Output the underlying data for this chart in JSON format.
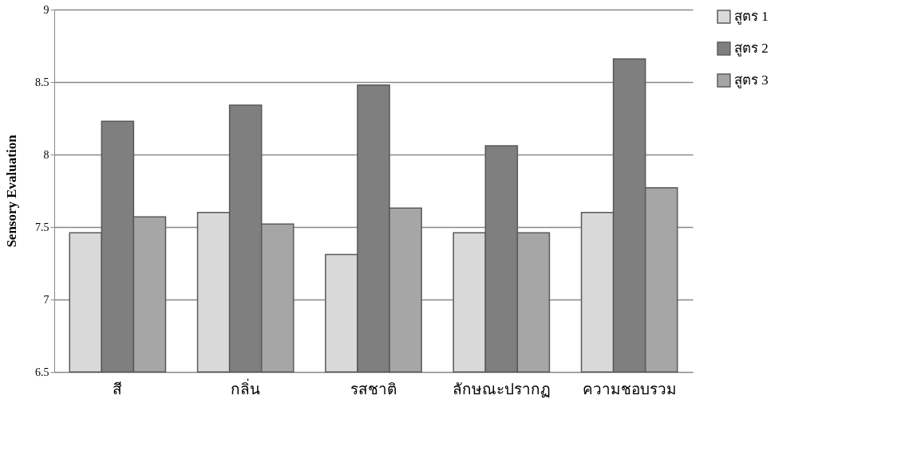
{
  "chart_data": {
    "type": "bar",
    "ylabel": "Sensory Evaluation",
    "categories": [
      "สี",
      "กลิ่น",
      "รสชาติ",
      "ลักษณะปรากฏ",
      "ความชอบรวม"
    ],
    "series": [
      {
        "name": "สูตร 1",
        "color": "#d9d9d9",
        "values": [
          7.46,
          7.6,
          7.31,
          7.46,
          7.6
        ]
      },
      {
        "name": "สูตร 2",
        "color": "#7f7f7f",
        "values": [
          8.23,
          8.34,
          8.48,
          8.06,
          8.66
        ]
      },
      {
        "name": "สูตร 3",
        "color": "#a6a6a6",
        "values": [
          7.57,
          7.52,
          7.63,
          7.46,
          7.77
        ]
      }
    ],
    "ylim": [
      6.5,
      9
    ],
    "yticks": [
      6.5,
      7,
      7.5,
      8,
      8.5,
      9
    ],
    "grid": "y",
    "legend": "right"
  }
}
